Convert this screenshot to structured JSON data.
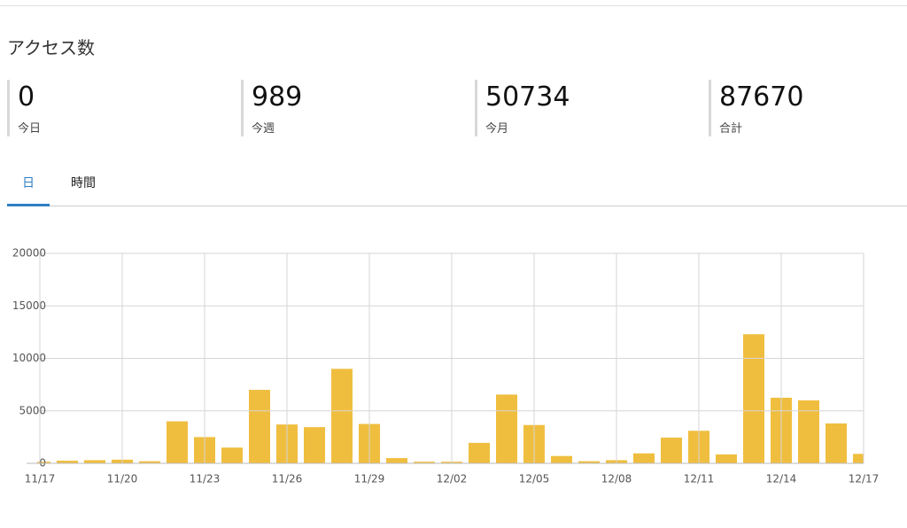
{
  "header": {
    "title": "アクセス数"
  },
  "stats": [
    {
      "value": "0",
      "label": "今日"
    },
    {
      "value": "989",
      "label": "今週"
    },
    {
      "value": "50734",
      "label": "今月"
    },
    {
      "value": "87670",
      "label": "合計"
    }
  ],
  "tabs": [
    "日",
    "時間"
  ],
  "chart_data": {
    "type": "bar",
    "categories": [
      "11/17",
      null,
      null,
      "11/20",
      null,
      null,
      "11/23",
      null,
      null,
      "11/26",
      null,
      null,
      "11/29",
      null,
      null,
      "12/02",
      null,
      null,
      "12/05",
      null,
      null,
      "12/08",
      null,
      null,
      "12/11",
      null,
      null,
      "12/14",
      null,
      null,
      "12/17"
    ],
    "values": [
      150,
      250,
      300,
      350,
      200,
      4000,
      2500,
      1500,
      7000,
      3700,
      3450,
      9000,
      3750,
      500,
      150,
      150,
      1950,
      6550,
      3650,
      700,
      200,
      300,
      950,
      2450,
      3100,
      850,
      12300,
      6250,
      6000,
      3800,
      900
    ],
    "color": "#f0be3f",
    "ylim": [
      0,
      20000
    ],
    "yticks": [
      0,
      5000,
      10000,
      15000,
      20000
    ],
    "grid": true
  }
}
